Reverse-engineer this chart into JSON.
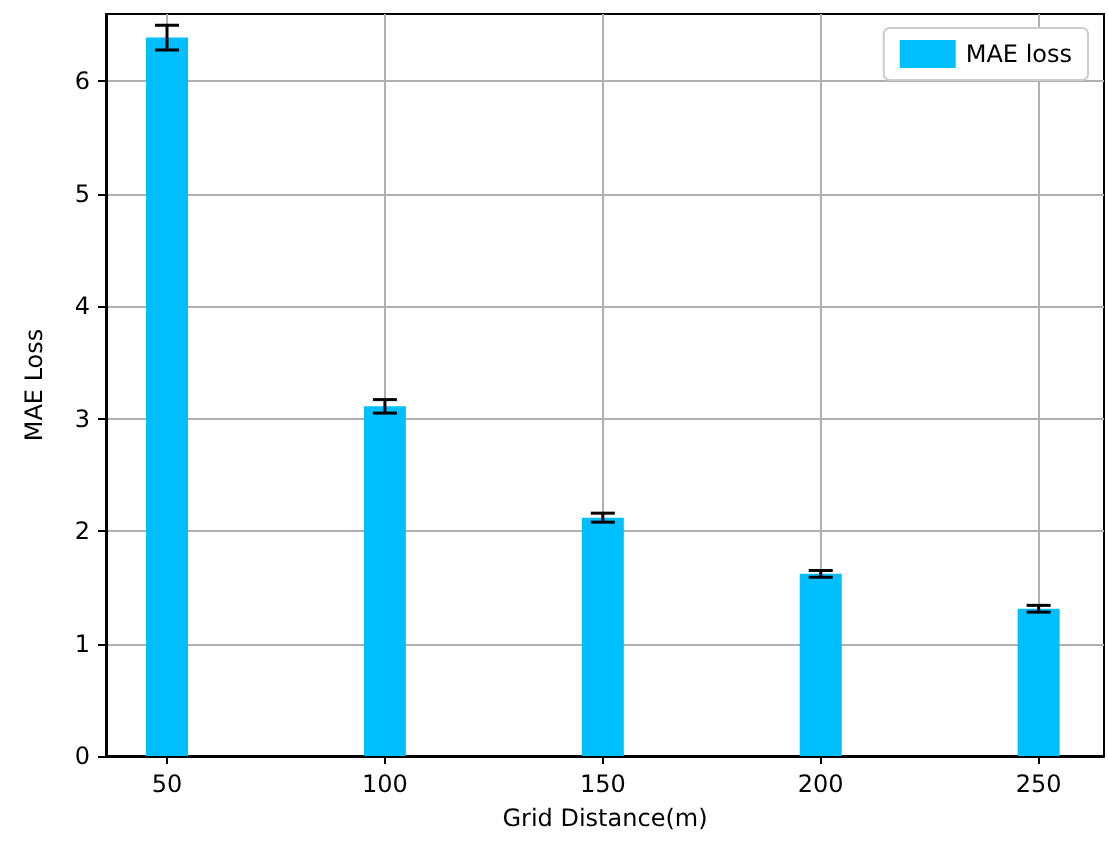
{
  "chart_data": {
    "type": "bar",
    "xlabel": "Grid Distance(m)",
    "ylabel": "MAE Loss",
    "x": [
      50,
      100,
      150,
      200,
      250
    ],
    "series": [
      {
        "name": "MAE loss",
        "color": "#00bfff",
        "values": [
          6.39,
          3.11,
          2.12,
          1.62,
          1.31
        ],
        "errors": [
          0.11,
          0.06,
          0.04,
          0.03,
          0.03
        ]
      }
    ],
    "xlim": [
      36,
      265
    ],
    "xticks": [
      50,
      100,
      150,
      200,
      250
    ],
    "ylim": [
      0,
      6.6
    ],
    "yticks": [
      0,
      1,
      2,
      3,
      4,
      5,
      6
    ],
    "grid": true,
    "legend": "top right"
  }
}
